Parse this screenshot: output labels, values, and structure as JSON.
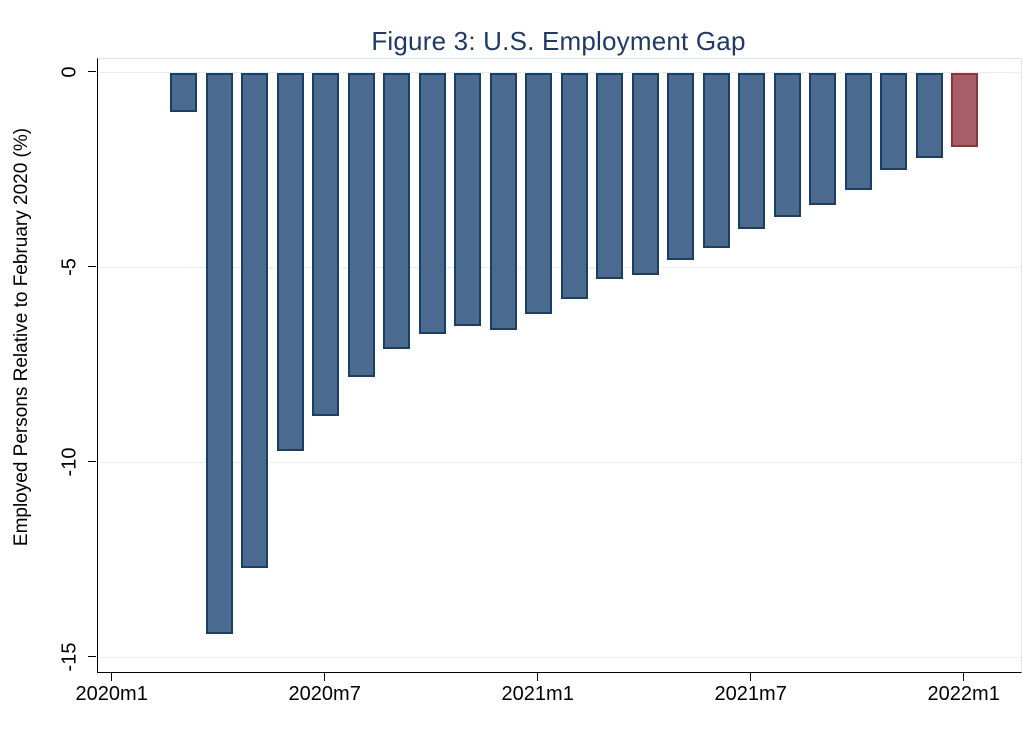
{
  "title": "Figure 3: U.S. Employment Gap",
  "y_axis": {
    "label": "Employed Persons Relative to February 2020 (%)",
    "tick_labels": [
      "0",
      "-5",
      "-10",
      "-15"
    ],
    "tick_values": [
      0,
      -5,
      -10,
      -15
    ]
  },
  "x_axis": {
    "tick_labels": [
      "2020m1",
      "2020m7",
      "2021m1",
      "2021m7",
      "2022m1"
    ]
  },
  "colors": {
    "title_text": "#1e3a65",
    "bar_fill": "#4a6b8f",
    "bar_border": "#1b3f63",
    "highlight_fill": "#a75e66",
    "highlight_border": "#8e343d",
    "gridline": "#e4eef5",
    "plot_border": "#dce8f0",
    "axis_line": "#000000"
  },
  "chart_data": {
    "type": "bar",
    "title": "Figure 3: U.S. Employment Gap",
    "xlabel": "",
    "ylabel": "Employed Persons Relative to February 2020 (%)",
    "ylim": [
      -15.4,
      0.35
    ],
    "grid": "horizontal-only",
    "legend": "none",
    "y_tick_values": [
      0,
      -5,
      -10,
      -15
    ],
    "x_tick_labels": [
      "2020m1",
      "2020m7",
      "2021m1",
      "2021m7",
      "2022m1"
    ],
    "categories": [
      "2020m3",
      "2020m4",
      "2020m5",
      "2020m6",
      "2020m7",
      "2020m8",
      "2020m9",
      "2020m10",
      "2020m11",
      "2020m12",
      "2021m1",
      "2021m2",
      "2021m3",
      "2021m4",
      "2021m5",
      "2021m6",
      "2021m7",
      "2021m8",
      "2021m9",
      "2021m10",
      "2021m11",
      "2021m12",
      "2022m1"
    ],
    "values": [
      -1.0,
      -14.4,
      -12.7,
      -9.7,
      -8.8,
      -7.8,
      -7.1,
      -6.7,
      -6.5,
      -6.6,
      -6.2,
      -5.8,
      -5.3,
      -5.2,
      -4.8,
      -4.5,
      -4.0,
      -3.7,
      -3.4,
      -3.0,
      -2.5,
      -2.2,
      -1.9
    ],
    "highlight_category": "2022m1",
    "series_color_note": "all bars slate blue with navy outline; 2022m1 bar dusty red with maroon outline"
  }
}
